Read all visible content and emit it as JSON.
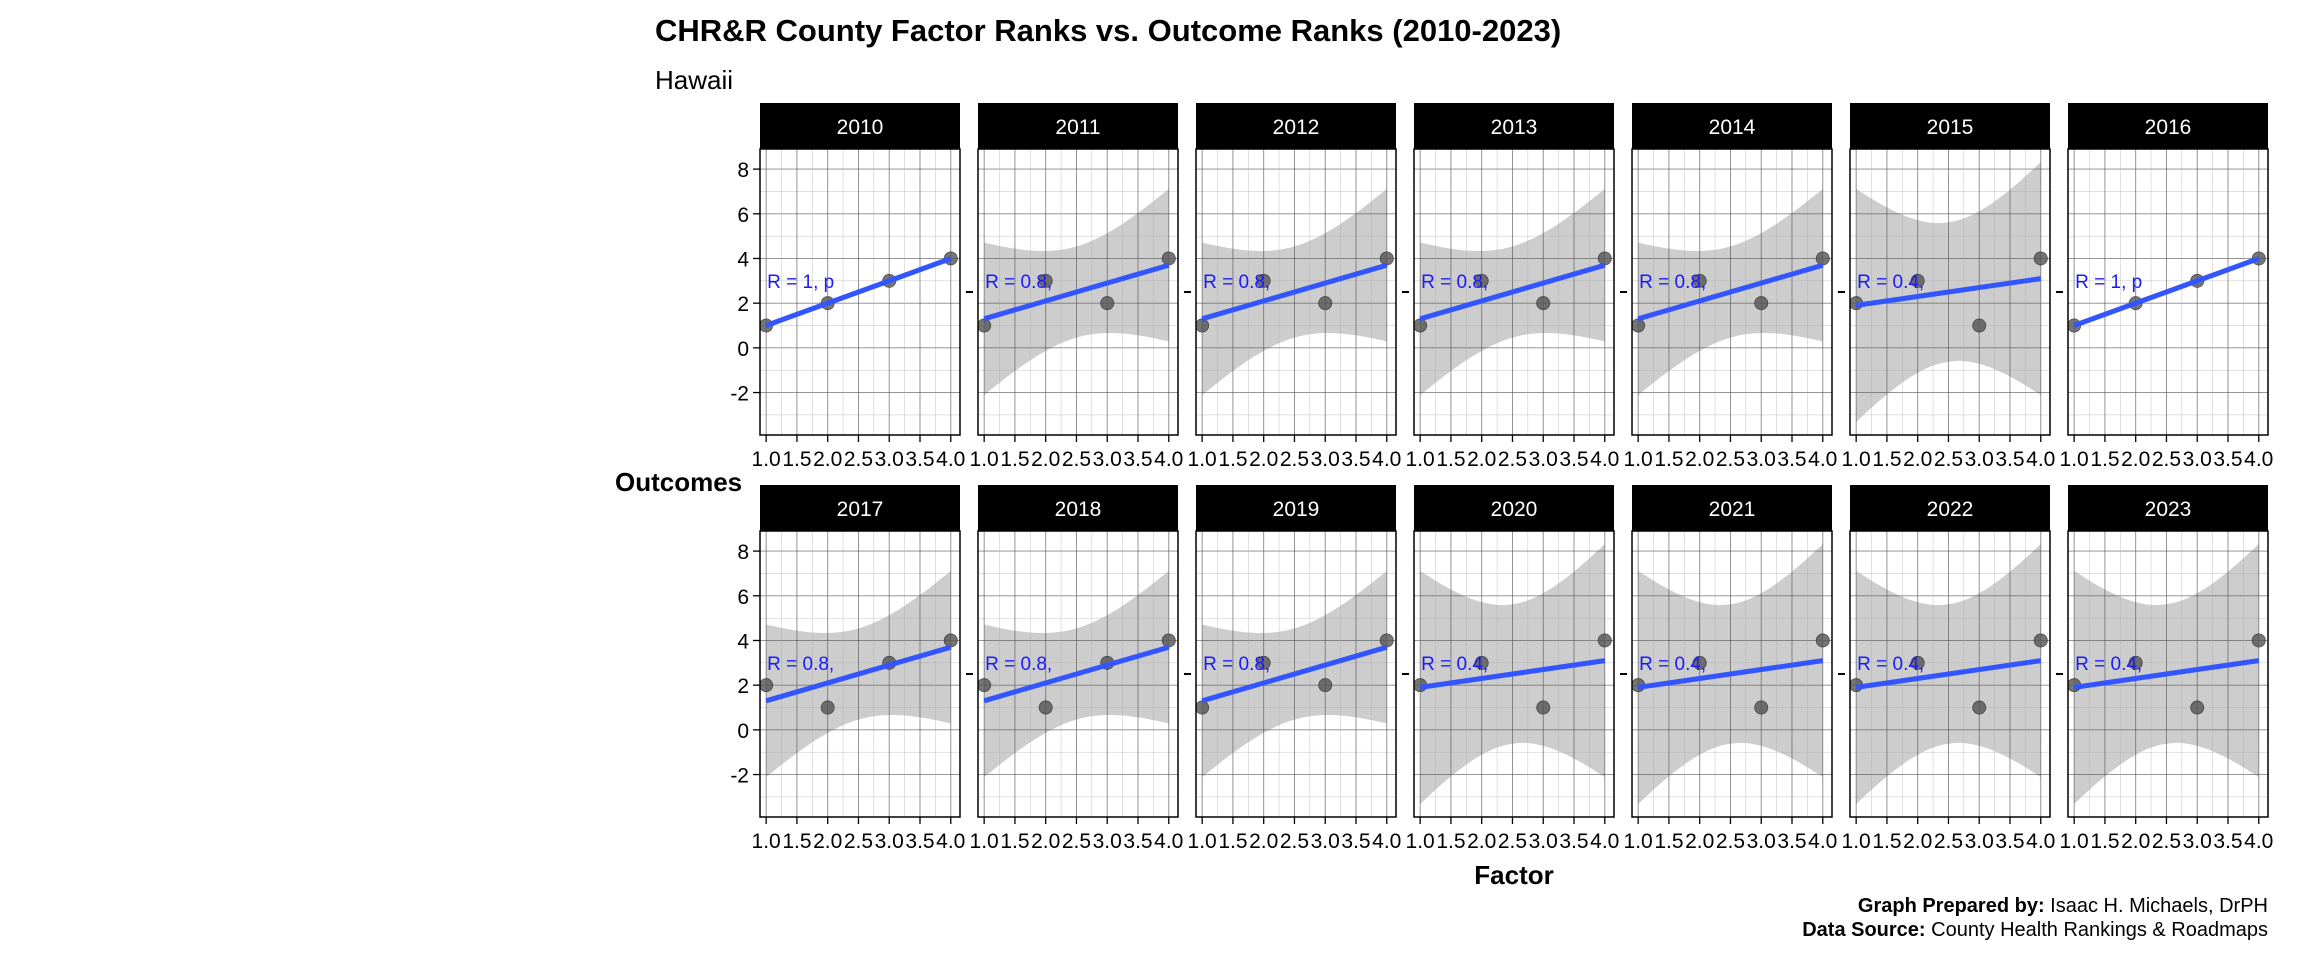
{
  "chart_data": {
    "type": "scatter",
    "title": "CHR&R County Factor Ranks vs. Outcome Ranks (2010-2023)",
    "subtitle": "Hawaii",
    "xlabel": "Factor",
    "ylabel": "Outcomes",
    "xlim": [
      0.9,
      4.15
    ],
    "ylim": [
      -3.9,
      8.9
    ],
    "x_ticks": [
      "1.0",
      "1.5",
      "2.0",
      "2.5",
      "3.0",
      "3.5",
      "4.0"
    ],
    "x_tick_values": [
      1.0,
      1.5,
      2.0,
      2.5,
      3.0,
      3.5,
      4.0
    ],
    "y_ticks": [
      -2,
      0,
      2,
      4,
      6,
      8
    ],
    "grid": true,
    "smooth": "linear fit with 95% confidence band",
    "colors": {
      "line": "#3355ff",
      "label": "#1a1aff",
      "band": "#c8c8c8",
      "point": "#555555",
      "strip": "#000000"
    },
    "panels": [
      {
        "year": "2010",
        "x": [
          1,
          2,
          3,
          4
        ],
        "y": [
          1,
          2,
          3,
          4
        ],
        "r_label": "R = 1, p"
      },
      {
        "year": "2011",
        "x": [
          1,
          2,
          3,
          4
        ],
        "y": [
          1,
          3,
          2,
          4
        ],
        "r_label": "R = 0.8,"
      },
      {
        "year": "2012",
        "x": [
          1,
          2,
          3,
          4
        ],
        "y": [
          1,
          3,
          2,
          4
        ],
        "r_label": "R = 0.8,"
      },
      {
        "year": "2013",
        "x": [
          1,
          2,
          3,
          4
        ],
        "y": [
          1,
          3,
          2,
          4
        ],
        "r_label": "R = 0.8,"
      },
      {
        "year": "2014",
        "x": [
          1,
          2,
          3,
          4
        ],
        "y": [
          1,
          3,
          2,
          4
        ],
        "r_label": "R = 0.8,"
      },
      {
        "year": "2015",
        "x": [
          1,
          2,
          3,
          4
        ],
        "y": [
          2,
          3,
          1,
          4
        ],
        "r_label": "R = 0.4,"
      },
      {
        "year": "2016",
        "x": [
          1,
          2,
          3,
          4
        ],
        "y": [
          1,
          2,
          3,
          4
        ],
        "r_label": "R = 1, p"
      },
      {
        "year": "2017",
        "x": [
          1,
          2,
          3,
          4
        ],
        "y": [
          2,
          1,
          3,
          4
        ],
        "r_label": "R = 0.8,"
      },
      {
        "year": "2018",
        "x": [
          1,
          2,
          3,
          4
        ],
        "y": [
          2,
          1,
          3,
          4
        ],
        "r_label": "R = 0.8,"
      },
      {
        "year": "2019",
        "x": [
          1,
          2,
          3,
          4
        ],
        "y": [
          1,
          3,
          2,
          4
        ],
        "r_label": "R = 0.8,"
      },
      {
        "year": "2020",
        "x": [
          1,
          2,
          3,
          4
        ],
        "y": [
          2,
          3,
          1,
          4
        ],
        "r_label": "R = 0.4,"
      },
      {
        "year": "2021",
        "x": [
          1,
          2,
          3,
          4
        ],
        "y": [
          2,
          3,
          1,
          4
        ],
        "r_label": "R = 0.4,"
      },
      {
        "year": "2022",
        "x": [
          1,
          2,
          3,
          4
        ],
        "y": [
          2,
          3,
          1,
          4
        ],
        "r_label": "R = 0.4,"
      },
      {
        "year": "2023",
        "x": [
          1,
          2,
          3,
          4
        ],
        "y": [
          2,
          3,
          1,
          4
        ],
        "r_label": "R = 0.4,"
      }
    ],
    "caption": {
      "prepared_label": "Graph Prepared by:",
      "prepared_value": " Isaac H. Michaels, DrPH",
      "source_label": "Data Source:",
      "source_value": " County Health Rankings & Roadmaps"
    }
  }
}
